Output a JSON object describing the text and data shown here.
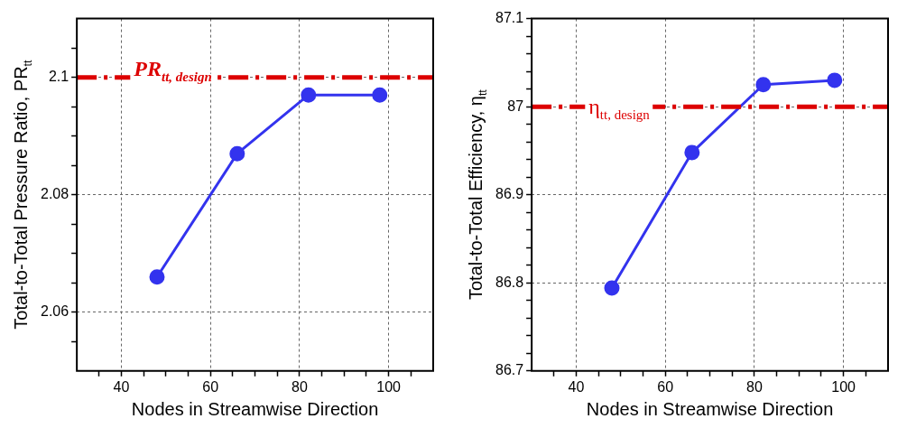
{
  "chart_data": [
    {
      "type": "line",
      "xlabel": "Nodes in Streamwise Direction",
      "ylabel": "Total-to-Total Pressure Ratio, PR$_{tt}$",
      "x": [
        48,
        66,
        82,
        98
      ],
      "series": [
        {
          "color": "#3333ee",
          "values": [
            2.066,
            2.087,
            2.097,
            2.097
          ]
        }
      ],
      "xlim": [
        30,
        110
      ],
      "xticks": [
        {
          "value": 35,
          "label": null
        },
        40,
        {
          "value": 45,
          "label": null
        },
        {
          "value": 50,
          "label": null
        },
        {
          "value": 55,
          "label": null
        },
        60,
        {
          "value": 65,
          "label": null
        },
        {
          "value": 70,
          "label": null
        },
        {
          "value": 75,
          "label": null
        },
        80,
        {
          "value": 85,
          "label": null
        },
        {
          "value": 90,
          "label": null
        },
        {
          "value": 95,
          "label": null
        },
        100,
        {
          "value": 105,
          "label": null
        }
      ],
      "ylim": [
        2.05,
        2.11
      ],
      "yticks": [
        {
          "value": 2.055,
          "label": null
        },
        2.06,
        {
          "value": 2.065,
          "label": null
        },
        {
          "value": 2.07,
          "label": null
        },
        {
          "value": 2.075,
          "label": null
        },
        2.08,
        {
          "value": 2.085,
          "label": null
        },
        {
          "value": 2.09,
          "label": null
        },
        {
          "value": 2.095,
          "label": null
        },
        2.1,
        {
          "value": 2.105,
          "label": null
        }
      ],
      "ref_lines": [
        {
          "axis": "y",
          "value": 2.1,
          "label": "PR$_{tt, design}$",
          "color": "#dd0000"
        }
      ],
      "grid": true,
      "legend": false,
      "marker": "circle",
      "line_style": "solid"
    },
    {
      "type": "line",
      "xlabel": "Nodes in Streamwise Direction",
      "ylabel": "Total-to-Total Efficiency, η$_{tt}$",
      "x": [
        48,
        66,
        82,
        98
      ],
      "series": [
        {
          "color": "#3333ee",
          "values": [
            86.794,
            86.948,
            87.025,
            87.03
          ]
        }
      ],
      "xlim": [
        30,
        110
      ],
      "xticks": [
        {
          "value": 35,
          "label": null
        },
        40,
        {
          "value": 45,
          "label": null
        },
        {
          "value": 50,
          "label": null
        },
        {
          "value": 55,
          "label": null
        },
        60,
        {
          "value": 65,
          "label": null
        },
        {
          "value": 70,
          "label": null
        },
        {
          "value": 75,
          "label": null
        },
        80,
        {
          "value": 85,
          "label": null
        },
        {
          "value": 90,
          "label": null
        },
        {
          "value": 95,
          "label": null
        },
        100,
        {
          "value": 105,
          "label": null
        }
      ],
      "ylim": [
        86.7,
        87.1
      ],
      "yticks": [
        86.7,
        {
          "value": 86.72,
          "label": null
        },
        {
          "value": 86.74,
          "label": null
        },
        {
          "value": 86.76,
          "label": null
        },
        {
          "value": 86.78,
          "label": null
        },
        86.8,
        {
          "value": 86.82,
          "label": null
        },
        {
          "value": 86.84,
          "label": null
        },
        {
          "value": 86.86,
          "label": null
        },
        {
          "value": 86.88,
          "label": null
        },
        86.9,
        {
          "value": 86.92,
          "label": null
        },
        {
          "value": 86.94,
          "label": null
        },
        {
          "value": 86.96,
          "label": null
        },
        {
          "value": 86.98,
          "label": null
        },
        87,
        {
          "value": 87.02,
          "label": null
        },
        {
          "value": 87.04,
          "label": null
        },
        {
          "value": 87.06,
          "label": null
        },
        {
          "value": 87.08,
          "label": null
        },
        87.1
      ],
      "ref_lines": [
        {
          "axis": "y",
          "value": 87,
          "label": "η$_{tt, design}$",
          "color": "#dd0000"
        }
      ],
      "grid": true,
      "legend": false,
      "marker": "circle",
      "line_style": "solid"
    }
  ]
}
